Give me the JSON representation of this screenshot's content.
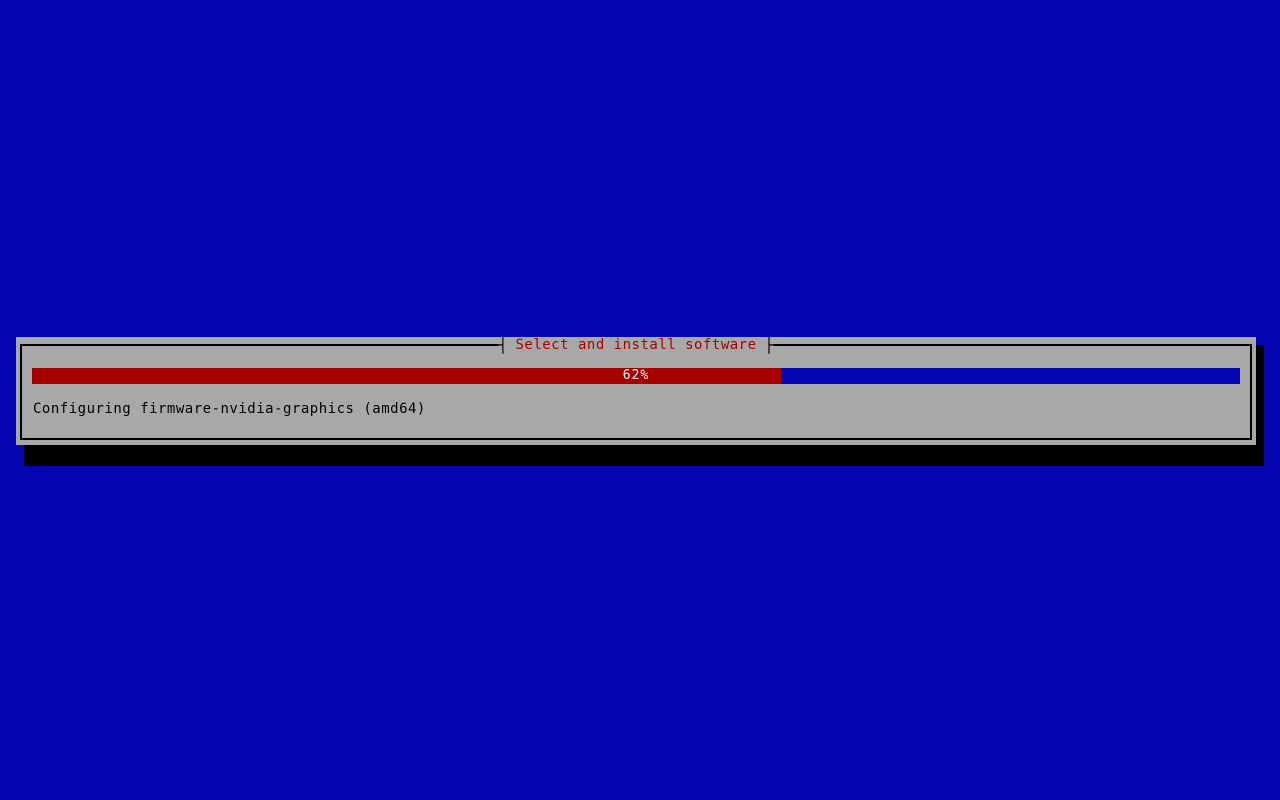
{
  "screen": {
    "background_color": "#0404b0"
  },
  "dialog": {
    "title": "Select and install software",
    "tick_left": "┤",
    "tick_right": "├",
    "background_color": "#a8a8a8",
    "border_color": "#000000",
    "title_color": "#a80000",
    "shadow_color": "#000000"
  },
  "progress": {
    "percent": 62,
    "label": "62%",
    "fill_color": "#a80000",
    "track_color": "#0404b0",
    "label_color": "#ffffff"
  },
  "status": {
    "text": "Configuring firmware-nvidia-graphics (amd64)"
  }
}
